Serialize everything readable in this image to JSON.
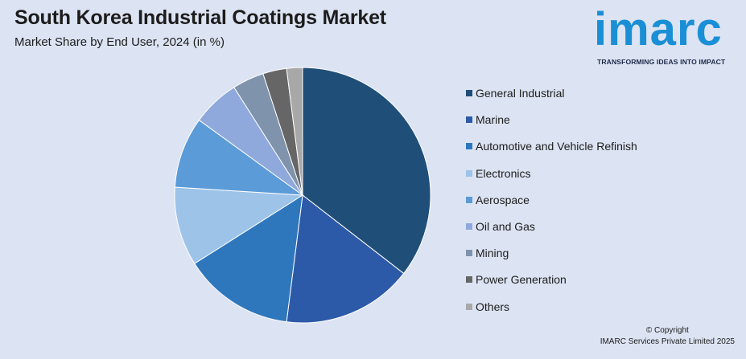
{
  "header": {
    "title": "South Korea Industrial Coatings Market",
    "subtitle": "Market Share by End User, 2024 (in %)"
  },
  "logo": {
    "wordmark": "imarc",
    "tagline": "TRANSFORMING IDEAS INTO IMPACT",
    "color": "#1a8fd6"
  },
  "footer": {
    "copyright_line1": "© Copyright",
    "copyright_line2": "IMARC Services Private Limited 2025"
  },
  "chart_data": {
    "type": "pie",
    "title": "South Korea Industrial Coatings Market",
    "subtitle": "Market Share by End User, 2024 (in %)",
    "legend_position": "right",
    "slices": [
      {
        "label": "General Industrial",
        "value": 35.5,
        "color": "#1f4e79"
      },
      {
        "label": "Marine",
        "value": 16.5,
        "color": "#2d5aa8"
      },
      {
        "label": "Automotive and Vehicle Refinish",
        "value": 14.0,
        "color": "#2e77bd"
      },
      {
        "label": "Electronics",
        "value": 10.0,
        "color": "#9dc3e8"
      },
      {
        "label": "Aerospace",
        "value": 9.0,
        "color": "#5b9bd8"
      },
      {
        "label": "Oil and Gas",
        "value": 6.0,
        "color": "#8fa9dc"
      },
      {
        "label": "Mining",
        "value": 4.0,
        "color": "#7f93ad"
      },
      {
        "label": "Power Generation",
        "value": 3.0,
        "color": "#666666"
      },
      {
        "label": "Others",
        "value": 2.0,
        "color": "#a8a8a8"
      }
    ]
  }
}
